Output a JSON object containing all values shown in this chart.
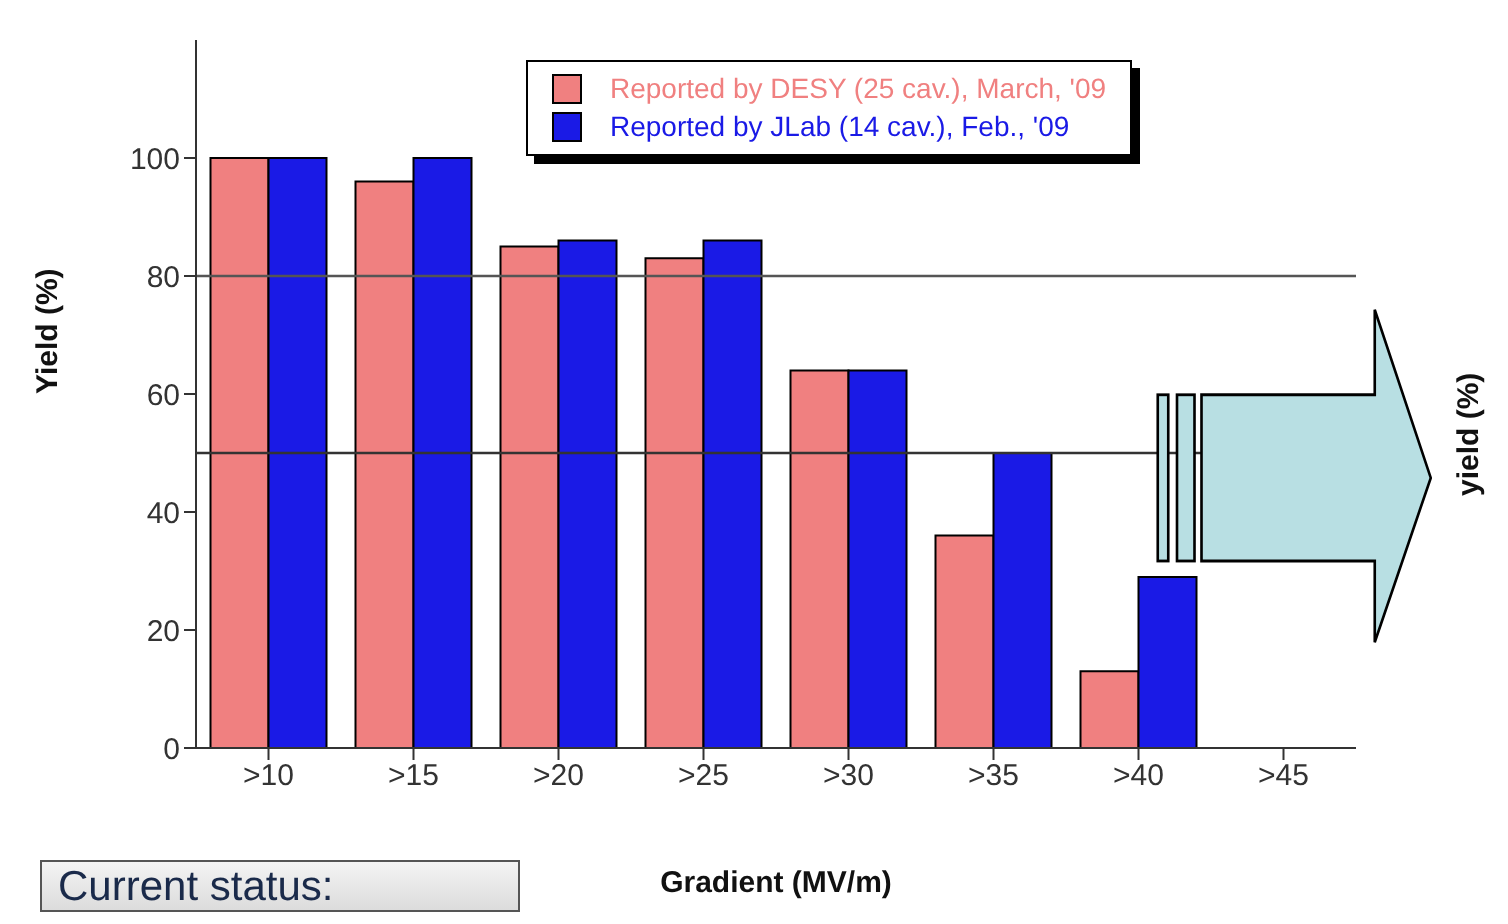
{
  "chart_data": {
    "type": "bar",
    "categories": [
      ">10",
      ">15",
      ">20",
      ">25",
      ">30",
      ">35",
      ">40",
      ">45"
    ],
    "series": [
      {
        "name": "Reported by DESY (25 cav.), March, '09",
        "color": "#f08080",
        "values": [
          100,
          96,
          85,
          83,
          64,
          36,
          13,
          0
        ]
      },
      {
        "name": "Reported by JLab (14 cav.), Feb., '09",
        "color": "#1a1ae6",
        "values": [
          100,
          100,
          86,
          86,
          64,
          50,
          29,
          0
        ]
      }
    ],
    "xlabel": "Gradient (MV/m)",
    "ylabel": "Yield (%)",
    "ylim": [
      0,
      120
    ],
    "yticks": [
      0,
      20,
      40,
      60,
      80,
      100
    ],
    "ref_lines": [
      {
        "axis": "y",
        "value": 80,
        "color": "#555555"
      },
      {
        "axis": "y",
        "value": 50,
        "color": "#333333"
      }
    ],
    "annotations": [
      "Current status:",
      "yield (%)"
    ],
    "grid": false,
    "legend": "top right"
  }
}
